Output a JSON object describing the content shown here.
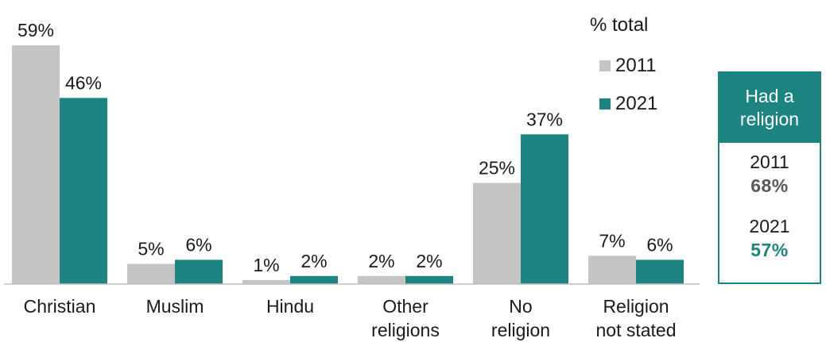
{
  "chart_data": {
    "type": "bar",
    "categories": [
      [
        "Christian"
      ],
      [
        "Muslim"
      ],
      [
        "Hindu"
      ],
      [
        "Other",
        "religions"
      ],
      [
        "No",
        "religion"
      ],
      [
        "Religion",
        "not stated"
      ]
    ],
    "series": [
      {
        "name": "2011",
        "color": "#c4c4c4",
        "values": [
          59,
          5,
          1,
          2,
          25,
          7
        ]
      },
      {
        "name": "2021",
        "color": "#1d8481",
        "values": [
          46,
          6,
          2,
          2,
          37,
          6
        ]
      }
    ],
    "value_suffix": "%",
    "ylim": [
      0,
      60
    ],
    "grid": false,
    "legend": {
      "title": "% total",
      "placement": "top-right"
    }
  },
  "side_panel": {
    "header": [
      "Had a",
      "religion"
    ],
    "entries": [
      {
        "year": "2011",
        "value": "68%",
        "color": "#595959"
      },
      {
        "year": "2021",
        "value": "57%",
        "color": "#1d8481"
      }
    ]
  }
}
